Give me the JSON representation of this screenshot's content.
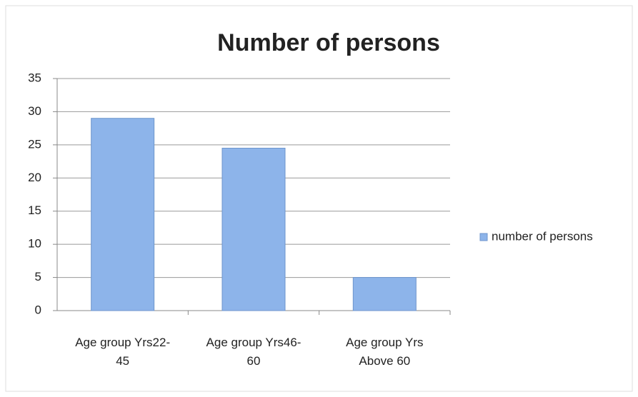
{
  "chart_data": {
    "type": "bar",
    "title": "Number of persons",
    "categories": [
      "Age group Yrs22-45",
      "Age group Yrs46-60",
      "Age group Yrs Above 60"
    ],
    "series": [
      {
        "name": "number of persons",
        "color": "#8db4ea",
        "values": [
          29,
          24.5,
          5
        ]
      }
    ],
    "ylim": [
      0,
      35
    ],
    "yticks": [
      0,
      5,
      10,
      15,
      20,
      25,
      30,
      35
    ],
    "grid": true,
    "legend": "right"
  }
}
